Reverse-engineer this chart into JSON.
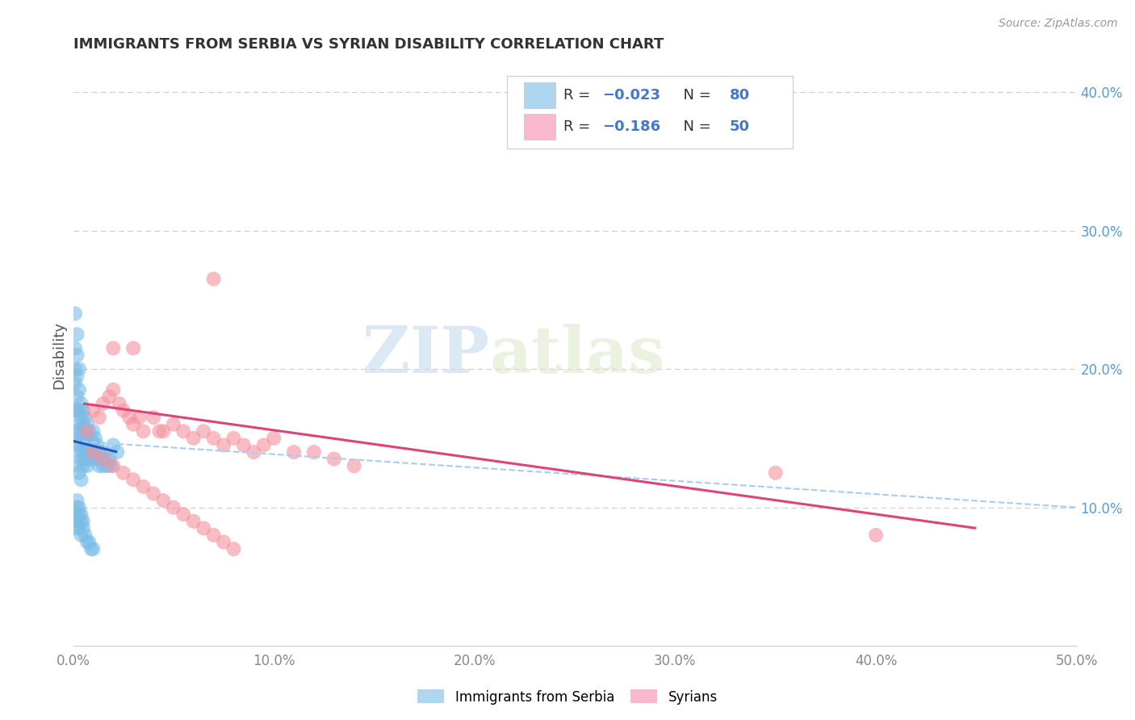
{
  "title": "IMMIGRANTS FROM SERBIA VS SYRIAN DISABILITY CORRELATION CHART",
  "source": "Source: ZipAtlas.com",
  "ylabel": "Disability",
  "xlim": [
    0.0,
    0.5
  ],
  "ylim": [
    0.0,
    0.42
  ],
  "serbia_color": "#7bbde8",
  "syrian_color": "#f4929d",
  "serbia_line_color": "#2255bb",
  "syrian_line_color": "#dd4477",
  "dashed_line_color": "#aaccee",
  "watermark_zip": "ZIP",
  "watermark_atlas": "atlas",
  "serbia_R": -0.023,
  "serbia_N": 80,
  "syrian_R": -0.186,
  "syrian_N": 50,
  "serbia_x": [
    0.001,
    0.001,
    0.001,
    0.001,
    0.001,
    0.002,
    0.002,
    0.002,
    0.002,
    0.002,
    0.002,
    0.002,
    0.002,
    0.003,
    0.003,
    0.003,
    0.003,
    0.003,
    0.003,
    0.003,
    0.004,
    0.004,
    0.004,
    0.004,
    0.004,
    0.004,
    0.005,
    0.005,
    0.005,
    0.005,
    0.005,
    0.006,
    0.006,
    0.006,
    0.006,
    0.007,
    0.007,
    0.007,
    0.007,
    0.008,
    0.008,
    0.008,
    0.009,
    0.009,
    0.01,
    0.01,
    0.01,
    0.011,
    0.011,
    0.012,
    0.012,
    0.013,
    0.013,
    0.014,
    0.015,
    0.015,
    0.016,
    0.017,
    0.018,
    0.019,
    0.001,
    0.001,
    0.002,
    0.002,
    0.003,
    0.003,
    0.004,
    0.004,
    0.005,
    0.006,
    0.007,
    0.008,
    0.009,
    0.01,
    0.002,
    0.003,
    0.004,
    0.005,
    0.02,
    0.022
  ],
  "serbia_y": [
    0.24,
    0.215,
    0.2,
    0.19,
    0.17,
    0.225,
    0.21,
    0.195,
    0.18,
    0.17,
    0.155,
    0.145,
    0.13,
    0.2,
    0.185,
    0.17,
    0.16,
    0.15,
    0.14,
    0.125,
    0.175,
    0.165,
    0.155,
    0.145,
    0.135,
    0.12,
    0.17,
    0.16,
    0.15,
    0.14,
    0.13,
    0.165,
    0.155,
    0.145,
    0.135,
    0.16,
    0.15,
    0.14,
    0.13,
    0.155,
    0.145,
    0.135,
    0.15,
    0.14,
    0.155,
    0.145,
    0.135,
    0.15,
    0.14,
    0.145,
    0.135,
    0.14,
    0.13,
    0.135,
    0.14,
    0.13,
    0.135,
    0.13,
    0.135,
    0.13,
    0.095,
    0.085,
    0.1,
    0.09,
    0.095,
    0.085,
    0.09,
    0.08,
    0.085,
    0.08,
    0.075,
    0.075,
    0.07,
    0.07,
    0.105,
    0.1,
    0.095,
    0.09,
    0.145,
    0.14
  ],
  "syrian_x": [
    0.007,
    0.01,
    0.013,
    0.015,
    0.018,
    0.02,
    0.023,
    0.025,
    0.028,
    0.03,
    0.033,
    0.035,
    0.04,
    0.043,
    0.045,
    0.05,
    0.055,
    0.06,
    0.065,
    0.07,
    0.075,
    0.08,
    0.085,
    0.09,
    0.095,
    0.1,
    0.11,
    0.12,
    0.13,
    0.14,
    0.01,
    0.015,
    0.02,
    0.025,
    0.03,
    0.035,
    0.04,
    0.045,
    0.05,
    0.055,
    0.06,
    0.065,
    0.07,
    0.075,
    0.08,
    0.35,
    0.4,
    0.07,
    0.03,
    0.02
  ],
  "syrian_y": [
    0.155,
    0.17,
    0.165,
    0.175,
    0.18,
    0.185,
    0.175,
    0.17,
    0.165,
    0.16,
    0.165,
    0.155,
    0.165,
    0.155,
    0.155,
    0.16,
    0.155,
    0.15,
    0.155,
    0.15,
    0.145,
    0.15,
    0.145,
    0.14,
    0.145,
    0.15,
    0.14,
    0.14,
    0.135,
    0.13,
    0.14,
    0.135,
    0.13,
    0.125,
    0.12,
    0.115,
    0.11,
    0.105,
    0.1,
    0.095,
    0.09,
    0.085,
    0.08,
    0.075,
    0.07,
    0.125,
    0.08,
    0.265,
    0.215,
    0.215
  ],
  "serbia_line_x": [
    0.0,
    0.022
  ],
  "serbia_line_y": [
    0.148,
    0.14
  ],
  "syrian_line_x": [
    0.005,
    0.45
  ],
  "syrian_line_y": [
    0.175,
    0.085
  ],
  "dashed_line_x": [
    0.0,
    0.5
  ],
  "dashed_line_y": [
    0.148,
    0.1
  ]
}
